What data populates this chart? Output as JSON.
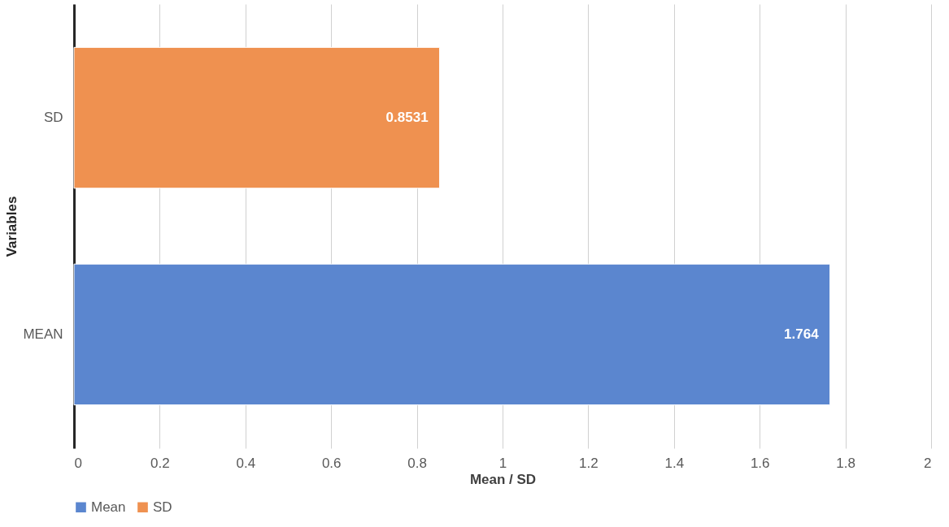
{
  "chart_data": {
    "type": "bar",
    "orientation": "horizontal",
    "xlabel": "Mean / SD",
    "ylabel": "Variables",
    "categories": [
      "SD",
      "MEAN"
    ],
    "series": [
      {
        "name": "Mean",
        "color": "#5b86cf",
        "values": [
          null,
          1.764
        ]
      },
      {
        "name": "SD",
        "color": "#ef9150",
        "values": [
          0.8531,
          null
        ]
      }
    ],
    "xlim": [
      0,
      2
    ],
    "xticks": [
      0,
      0.2,
      0.4,
      0.6,
      0.8,
      1,
      1.2,
      1.4,
      1.6,
      1.8,
      2
    ],
    "grid": "x",
    "legend": "bottom",
    "data_labels": true
  }
}
